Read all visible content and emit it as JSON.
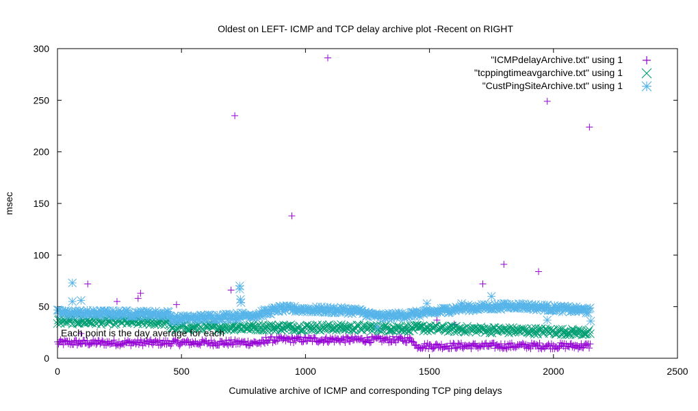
{
  "chart_data": {
    "type": "scatter",
    "title": "Oldest on LEFT- ICMP and TCP delay archive plot -Recent on RIGHT",
    "xlabel": "Cumulative archive of ICMP and corresponding TCP ping delays",
    "ylabel": "msec",
    "xlim": [
      0,
      2500
    ],
    "ylim": [
      0,
      300
    ],
    "x_ticks": [
      0,
      500,
      1000,
      1500,
      2000,
      2500
    ],
    "y_ticks": [
      0,
      50,
      100,
      150,
      200,
      250,
      300
    ],
    "x_tick_labels": [
      "0",
      "500",
      "1000",
      "1500",
      "2000",
      "2500"
    ],
    "y_tick_labels": [
      "0",
      "50",
      "100",
      "150",
      "200",
      "250",
      "300"
    ],
    "annotation": "Each point is the day average for each",
    "legend_position": "top-right",
    "series": [
      {
        "name": "\"ICMPdelayArchive.txt\" using 1",
        "color": "#9400d3",
        "marker": "plus",
        "n_points": 2150,
        "baseline_segments": [
          {
            "x_start": 0,
            "x_end": 840,
            "y": 15,
            "spread": 3
          },
          {
            "x_start": 840,
            "x_end": 1440,
            "y": 18,
            "spread": 3
          },
          {
            "x_start": 1440,
            "x_end": 2150,
            "y": 12,
            "spread": 3
          }
        ],
        "outliers": [
          {
            "x": 10,
            "y": 16
          },
          {
            "x": 95,
            "y": 24
          },
          {
            "x": 122,
            "y": 72
          },
          {
            "x": 240,
            "y": 55
          },
          {
            "x": 325,
            "y": 58
          },
          {
            "x": 335,
            "y": 63
          },
          {
            "x": 480,
            "y": 52
          },
          {
            "x": 700,
            "y": 66
          },
          {
            "x": 715,
            "y": 235
          },
          {
            "x": 945,
            "y": 138
          },
          {
            "x": 1090,
            "y": 291
          },
          {
            "x": 1530,
            "y": 37
          },
          {
            "x": 1600,
            "y": 33
          },
          {
            "x": 1715,
            "y": 72
          },
          {
            "x": 1800,
            "y": 91
          },
          {
            "x": 1940,
            "y": 84
          },
          {
            "x": 1975,
            "y": 249
          },
          {
            "x": 2145,
            "y": 224
          }
        ]
      },
      {
        "name": "\"tcppingtimeavgarchive.txt\" using 1",
        "color": "#009e73",
        "marker": "x",
        "n_points": 2150,
        "trend": [
          {
            "x": 0,
            "y": 36
          },
          {
            "x": 450,
            "y": 35
          },
          {
            "x": 460,
            "y": 30
          },
          {
            "x": 1000,
            "y": 30
          },
          {
            "x": 1500,
            "y": 29
          },
          {
            "x": 2150,
            "y": 25
          }
        ],
        "spread": 3,
        "outliers": [
          {
            "x": 300,
            "y": 38
          },
          {
            "x": 720,
            "y": 36
          }
        ]
      },
      {
        "name": "\"CustPingSiteArchive.txt\" using 1",
        "color": "#56b4e9",
        "marker": "star",
        "n_points": 2150,
        "trend": [
          {
            "x": 0,
            "y": 44
          },
          {
            "x": 450,
            "y": 43
          },
          {
            "x": 460,
            "y": 38
          },
          {
            "x": 800,
            "y": 42
          },
          {
            "x": 900,
            "y": 48
          },
          {
            "x": 1200,
            "y": 46
          },
          {
            "x": 1300,
            "y": 40
          },
          {
            "x": 1500,
            "y": 44
          },
          {
            "x": 1600,
            "y": 48
          },
          {
            "x": 1850,
            "y": 51
          },
          {
            "x": 2150,
            "y": 46
          }
        ],
        "spread": 3,
        "outliers": [
          {
            "x": 60,
            "y": 73
          },
          {
            "x": 60,
            "y": 55
          },
          {
            "x": 95,
            "y": 56
          },
          {
            "x": 735,
            "y": 70
          },
          {
            "x": 735,
            "y": 67
          },
          {
            "x": 738,
            "y": 57
          },
          {
            "x": 740,
            "y": 54
          },
          {
            "x": 1290,
            "y": 30
          },
          {
            "x": 1490,
            "y": 53
          },
          {
            "x": 1630,
            "y": 53
          },
          {
            "x": 1750,
            "y": 60
          },
          {
            "x": 1975,
            "y": 37
          },
          {
            "x": 2150,
            "y": 36
          }
        ]
      }
    ]
  }
}
